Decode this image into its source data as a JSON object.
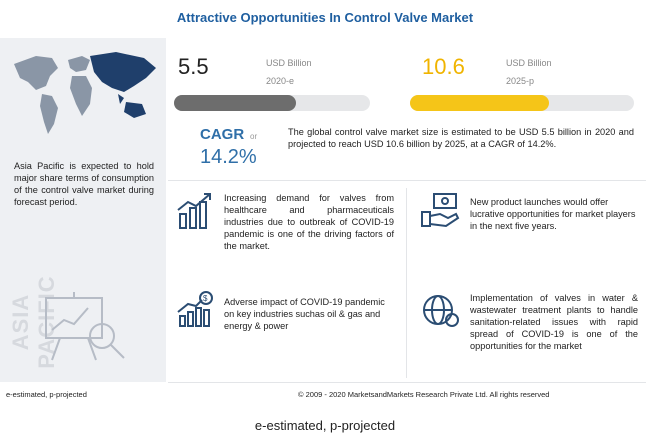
{
  "title": "Attractive Opportunities In Control Valve Market",
  "left_panel": {
    "text": "Asia Pacific is expected to hold major share terms of consumption of the control valve market during forecast period.",
    "vertical_label": "ASIA PACIFIC"
  },
  "chart_data": {
    "type": "bar",
    "categories": [
      "2020-e",
      "2025-p"
    ],
    "values": [
      5.5,
      10.6
    ],
    "value_labels": [
      "5.5",
      "10.6"
    ],
    "unit": "USD Billion",
    "colors": [
      "#6d6d6d",
      "#f5c518"
    ],
    "xlim": [
      0,
      10.6
    ]
  },
  "cagr": {
    "label": "CAGR",
    "or_label": "or",
    "value": "14.2%"
  },
  "summary": "The global control valve market size is estimated to be USD 5.5 billion in 2020 and projected to reach USD 10.6 billion by 2025, at a CAGR of 14.2%.",
  "items": [
    {
      "icon": "chart-growth-icon",
      "text": "Increasing demand for valves from healthcare and pharmaceuticals industries due to outbreak of COVID-19 pandemic is one of the driving factors of the market."
    },
    {
      "icon": "money-hand-icon",
      "text": "New product launches would offer lucrative opportunities for market players in the next five years."
    },
    {
      "icon": "dollar-bar-chart-icon",
      "text": "Adverse impact of COVID-19 pandemic on key industries suchas oil & gas and energy & power"
    },
    {
      "icon": "globe-gear-icon",
      "text": "Implementation of valves in water & wastewater treatment plants to handle sanitation-related issues with rapid spread of COVID-19 is one of the opportunities for the market"
    }
  ],
  "footer": {
    "left": "e-estimated, p-projected",
    "center": "© 2009 - 2020 MarketsandMarkets Research Private Ltd. All rights reserved"
  },
  "caption": "e-estimated, p-projected",
  "colors": {
    "title": "#1f5fa0",
    "accent_blue": "#2f6fa8",
    "gray_bar": "#6d6d6d",
    "yellow_bar": "#f5c518"
  }
}
